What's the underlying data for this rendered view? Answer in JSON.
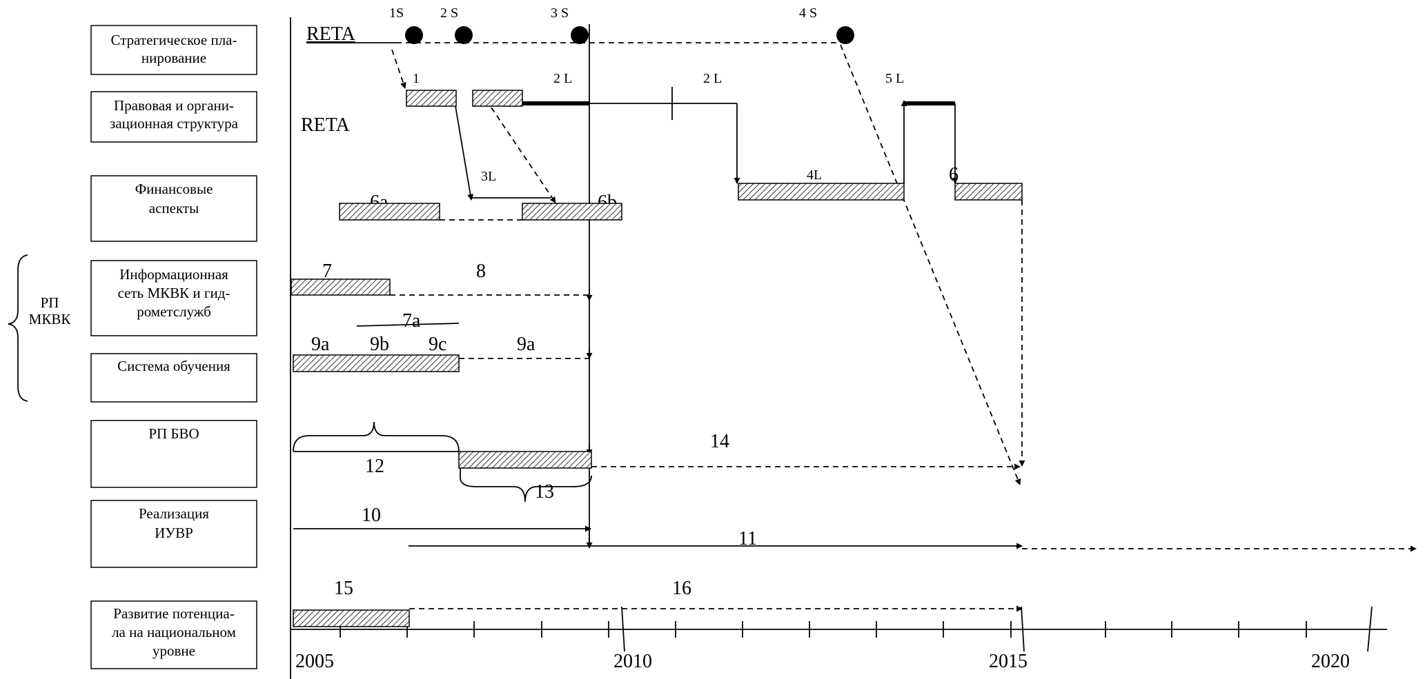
{
  "rows": [
    {
      "id": "strategic",
      "lines": [
        "Стратегическое пла-",
        "нирование"
      ]
    },
    {
      "id": "legal",
      "lines": [
        "Правовая и органи-",
        "зационная структура"
      ]
    },
    {
      "id": "finance",
      "lines": [
        "Финансовые",
        "аспекты"
      ]
    },
    {
      "id": "infonet",
      "lines": [
        "Информационная",
        "сеть МКВК и гид-",
        "рометслужб"
      ]
    },
    {
      "id": "training",
      "lines": [
        "Система обучения"
      ]
    },
    {
      "id": "rpbvo",
      "lines": [
        "РП БВО"
      ]
    },
    {
      "id": "iuvr",
      "lines": [
        "Реализация",
        "ИУВР"
      ]
    },
    {
      "id": "capacity",
      "lines": [
        "Развитие потенциа-",
        "ла на национальном",
        "уровне"
      ]
    }
  ],
  "group": {
    "lines": [
      "РП",
      "МКВК"
    ]
  },
  "axis": {
    "years": [
      "2005",
      "2010",
      "2015",
      "2020"
    ]
  },
  "milestones": [
    "1S",
    "2 S",
    "3 S",
    "4 S"
  ],
  "labels": {
    "reta_top": "RETA",
    "reta_mid": "RETA",
    "l1": "1",
    "l2L_a": "2 L",
    "l2L_b": "2 L",
    "l5L": "5 L",
    "l3L": "3L",
    "l4L": "4L",
    "l6a": "6a",
    "l6b": "6b",
    "l6": "6",
    "l7": "7",
    "l8": "8",
    "l7a": "7a",
    "l9a": "9a",
    "l9b": "9b",
    "l9c": "9c",
    "l9a2": "9a",
    "l14": "14",
    "l12": "12",
    "l13": "13",
    "l10": "10",
    "l11": "11",
    "l15": "15",
    "l16": "16"
  }
}
